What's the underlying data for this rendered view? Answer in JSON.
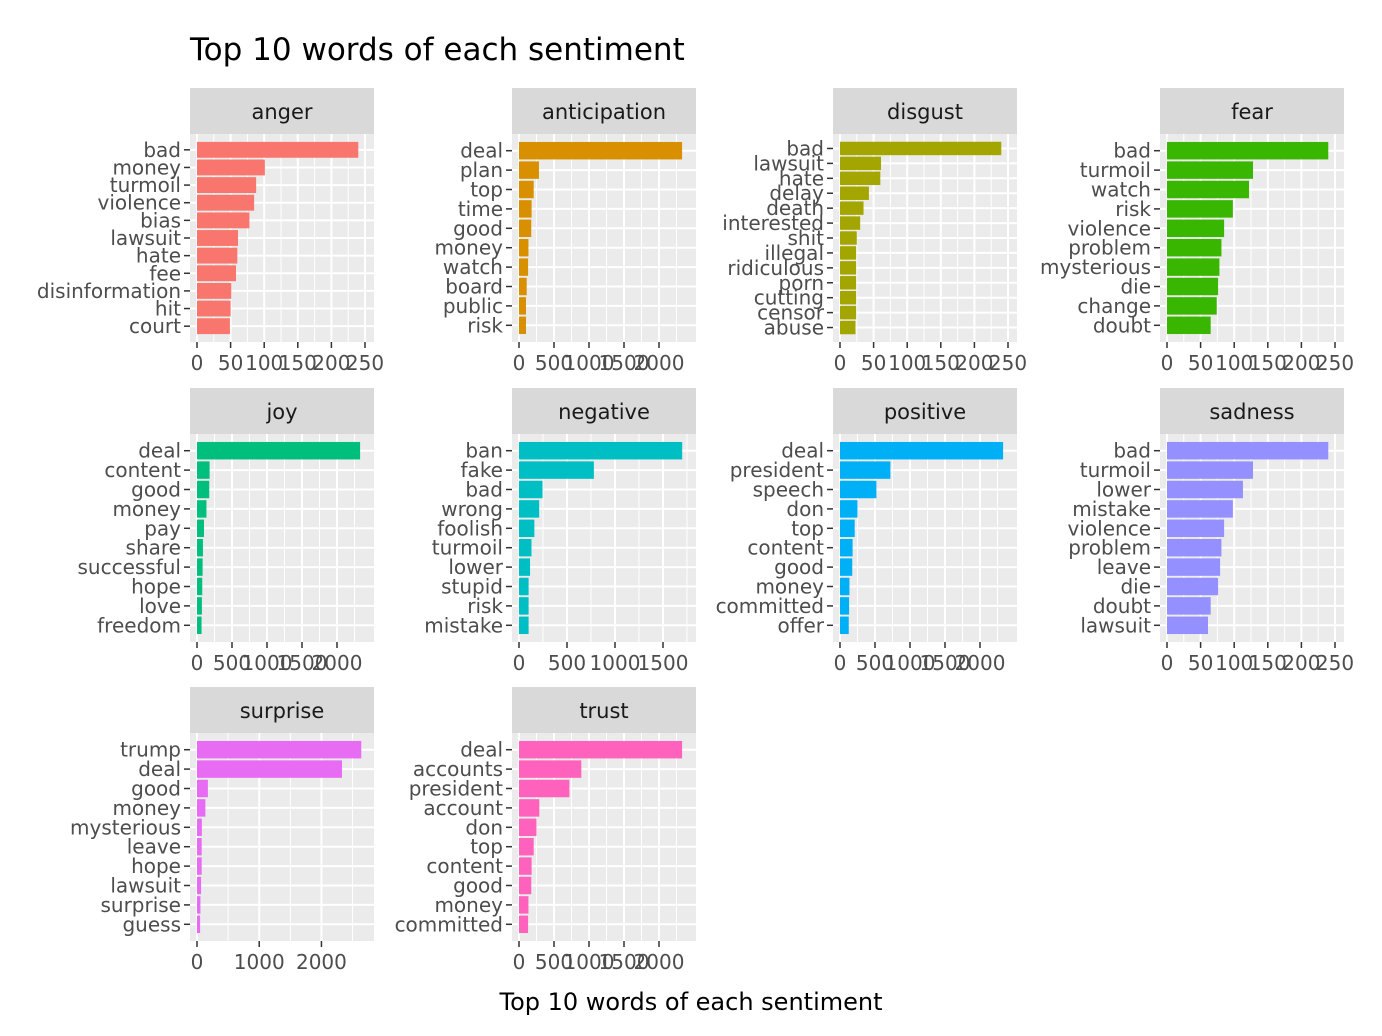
{
  "chart_data": {
    "type": "bar",
    "orientation": "horizontal",
    "title": "Top 10 words of each sentiment",
    "xlabel": "Top 10 words of each sentiment",
    "ylabel": "",
    "grid": true,
    "legend": "none",
    "facets": [
      {
        "name": "anger",
        "color": "#F8766D",
        "xlim": [
          0,
          250
        ],
        "ticks": [
          0,
          50,
          100,
          150,
          200,
          250
        ],
        "categories": [
          "bad",
          "money",
          "turmoil",
          "violence",
          "bias",
          "lawsuit",
          "hate",
          "fee",
          "disinformation",
          "hit",
          "court"
        ],
        "values": [
          240,
          101,
          88,
          85,
          78,
          61,
          60,
          58,
          51,
          50,
          49
        ]
      },
      {
        "name": "anticipation",
        "color": "#D89000",
        "xlim": [
          0,
          2400
        ],
        "ticks": [
          0,
          500,
          1000,
          1500,
          2000
        ],
        "categories": [
          "deal",
          "plan",
          "top",
          "time",
          "good",
          "money",
          "watch",
          "board",
          "public",
          "risk"
        ],
        "values": [
          2330,
          285,
          210,
          180,
          175,
          135,
          130,
          110,
          100,
          100
        ]
      },
      {
        "name": "disgust",
        "color": "#A3A500",
        "xlim": [
          0,
          250
        ],
        "ticks": [
          0,
          50,
          100,
          150,
          200,
          250
        ],
        "categories": [
          "bad",
          "lawsuit",
          "hate",
          "delay",
          "death",
          "interested",
          "shit",
          "illegal",
          "ridiculous",
          "porn",
          "cutting",
          "censor",
          "abuse"
        ],
        "values": [
          240,
          61,
          60,
          43,
          35,
          30,
          25,
          24,
          24,
          24,
          24,
          24,
          23
        ]
      },
      {
        "name": "fear",
        "color": "#39B600",
        "xlim": [
          0,
          250
        ],
        "ticks": [
          0,
          50,
          100,
          150,
          200,
          250
        ],
        "categories": [
          "bad",
          "turmoil",
          "watch",
          "risk",
          "violence",
          "problem",
          "mysterious",
          "die",
          "change",
          "doubt"
        ],
        "values": [
          240,
          128,
          122,
          98,
          85,
          81,
          78,
          76,
          74,
          65
        ]
      },
      {
        "name": "joy",
        "color": "#00BF7D",
        "xlim": [
          0,
          2400
        ],
        "ticks": [
          0,
          500,
          1000,
          1500,
          2000
        ],
        "categories": [
          "deal",
          "content",
          "good",
          "money",
          "pay",
          "share",
          "successful",
          "hope",
          "love",
          "freedom"
        ],
        "values": [
          2330,
          180,
          175,
          135,
          100,
          85,
          80,
          75,
          70,
          65
        ]
      },
      {
        "name": "negative",
        "color": "#00BFC4",
        "xlim": [
          0,
          1750
        ],
        "ticks": [
          0,
          500,
          1000,
          1500
        ],
        "categories": [
          "ban",
          "fake",
          "bad",
          "wrong",
          "foolish",
          "turmoil",
          "lower",
          "stupid",
          "risk",
          "mistake"
        ],
        "values": [
          1700,
          780,
          245,
          210,
          160,
          130,
          115,
          100,
          100,
          100
        ]
      },
      {
        "name": "positive",
        "color": "#00B0F6",
        "xlim": [
          0,
          2400
        ],
        "ticks": [
          0,
          500,
          1000,
          1500,
          2000
        ],
        "categories": [
          "deal",
          "president",
          "speech",
          "don",
          "top",
          "content",
          "good",
          "money",
          "committed",
          "offer"
        ],
        "values": [
          2330,
          720,
          520,
          250,
          210,
          180,
          175,
          135,
          130,
          125
        ]
      },
      {
        "name": "sadness",
        "color": "#9590FF",
        "xlim": [
          0,
          250
        ],
        "ticks": [
          0,
          50,
          100,
          150,
          200,
          250
        ],
        "categories": [
          "bad",
          "turmoil",
          "lower",
          "mistake",
          "violence",
          "problem",
          "leave",
          "die",
          "doubt",
          "lawsuit"
        ],
        "values": [
          240,
          128,
          113,
          98,
          85,
          81,
          79,
          76,
          65,
          61
        ]
      },
      {
        "name": "surprise",
        "color": "#E76BF3",
        "xlim": [
          0,
          2700
        ],
        "ticks": [
          0,
          1000,
          2000
        ],
        "categories": [
          "trump",
          "deal",
          "good",
          "money",
          "mysterious",
          "leave",
          "hope",
          "lawsuit",
          "surprise",
          "guess"
        ],
        "values": [
          2640,
          2330,
          175,
          135,
          78,
          75,
          75,
          65,
          55,
          50
        ]
      },
      {
        "name": "trust",
        "color": "#FF62BC",
        "xlim": [
          0,
          2400
        ],
        "ticks": [
          0,
          500,
          1000,
          1500,
          2000
        ],
        "categories": [
          "deal",
          "accounts",
          "president",
          "account",
          "don",
          "top",
          "content",
          "good",
          "money",
          "committed"
        ],
        "values": [
          2330,
          890,
          720,
          290,
          250,
          210,
          180,
          175,
          135,
          130
        ]
      }
    ]
  }
}
